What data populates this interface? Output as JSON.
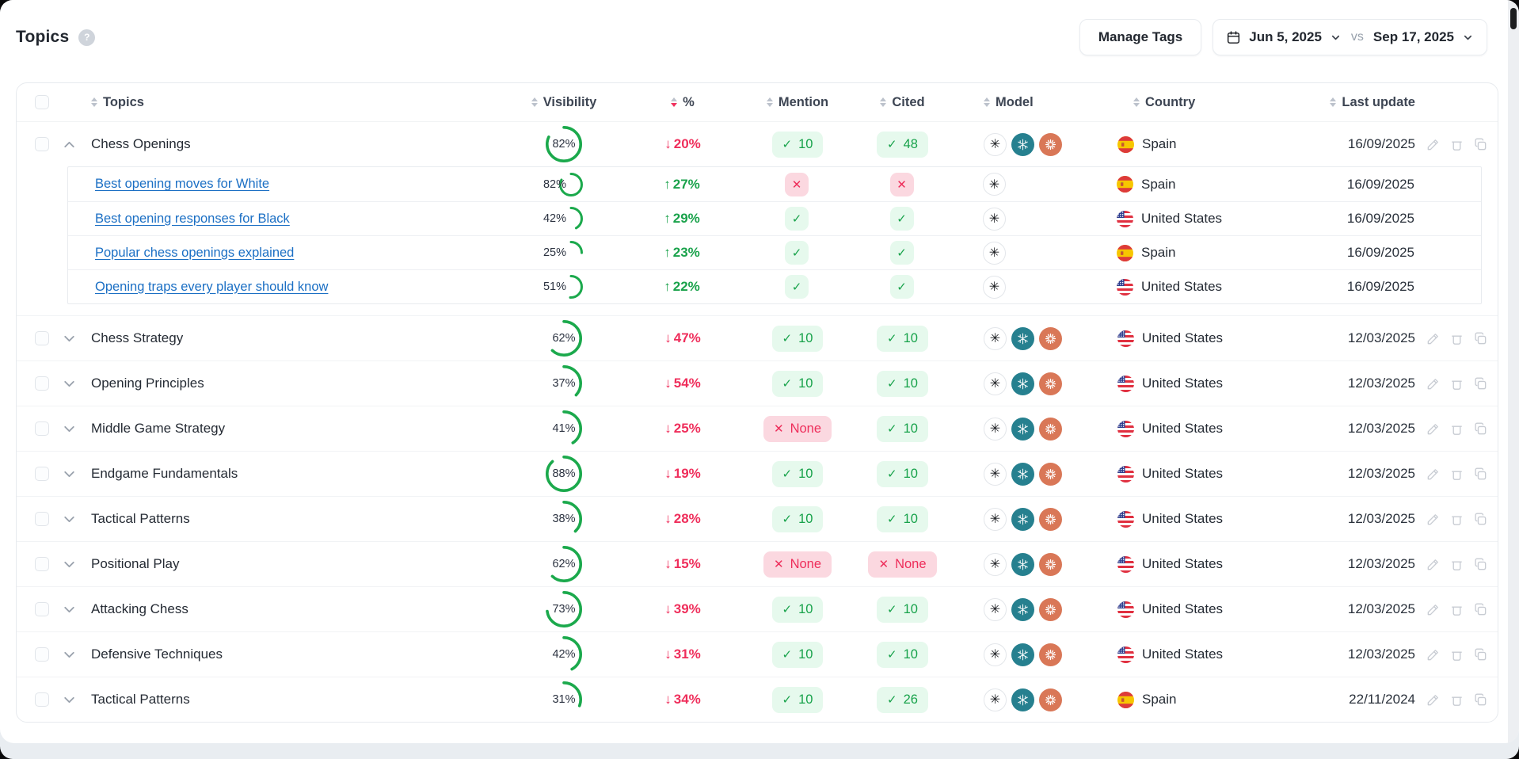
{
  "topbar": {
    "title": "Topics",
    "help": "?",
    "manage_tags": "Manage Tags",
    "date_start": "Jun 5, 2025",
    "vs": "vs",
    "date_end": "Sep 17, 2025"
  },
  "colors": {
    "green": "#1aa24b",
    "green_pill_bg": "#e6f9ed",
    "red": "#ef2e5b",
    "red_pill_bg": "#fbd8e0",
    "link_blue": "#1b6fc4",
    "perplexity_teal": "#26808f",
    "claude_orange": "#d97757",
    "ring_green": "#1ba94c"
  },
  "table": {
    "headers": [
      {
        "id": "topics",
        "label": "Topics",
        "sort": "both"
      },
      {
        "id": "visibility",
        "label": "Visibility",
        "sort": "both"
      },
      {
        "id": "pct",
        "label": "%",
        "sort": "desc"
      },
      {
        "id": "mention",
        "label": "Mention",
        "sort": "both"
      },
      {
        "id": "cited",
        "label": "Cited",
        "sort": "both"
      },
      {
        "id": "model",
        "label": "Model",
        "sort": "both"
      },
      {
        "id": "country",
        "label": "Country",
        "sort": "both"
      },
      {
        "id": "last_update",
        "label": "Last update",
        "sort": "both"
      }
    ],
    "rows": [
      {
        "name": "Chess Openings",
        "visibility": 82,
        "change": {
          "dir": "down",
          "value": "20%"
        },
        "mention": {
          "type": "count",
          "value": "10"
        },
        "cited": {
          "type": "count",
          "value": "48"
        },
        "models": [
          "openai",
          "perplexity",
          "claude"
        ],
        "country": {
          "code": "es",
          "name": "Spain"
        },
        "date": "16/09/2025",
        "expanded": true,
        "children": [
          {
            "name": "Best opening moves for White",
            "visibility": 82,
            "change": {
              "dir": "up",
              "value": "27%"
            },
            "mention": {
              "type": "cross"
            },
            "cited": {
              "type": "cross"
            },
            "models": [
              "openai"
            ],
            "country": {
              "code": "es",
              "name": "Spain"
            },
            "date": "16/09/2025"
          },
          {
            "name": "Best opening responses for Black",
            "visibility": 42,
            "change": {
              "dir": "up",
              "value": "29%"
            },
            "mention": {
              "type": "check"
            },
            "cited": {
              "type": "check"
            },
            "models": [
              "openai"
            ],
            "country": {
              "code": "us",
              "name": "United States"
            },
            "date": "16/09/2025"
          },
          {
            "name": "Popular chess openings explained",
            "visibility": 25,
            "change": {
              "dir": "up",
              "value": "23%"
            },
            "mention": {
              "type": "check"
            },
            "cited": {
              "type": "check"
            },
            "models": [
              "openai"
            ],
            "country": {
              "code": "es",
              "name": "Spain"
            },
            "date": "16/09/2025"
          },
          {
            "name": "Opening traps every player should know",
            "visibility": 51,
            "change": {
              "dir": "up",
              "value": "22%"
            },
            "mention": {
              "type": "check"
            },
            "cited": {
              "type": "check"
            },
            "models": [
              "openai"
            ],
            "country": {
              "code": "us",
              "name": "United States"
            },
            "date": "16/09/2025"
          }
        ]
      },
      {
        "name": "Chess Strategy",
        "visibility": 62,
        "change": {
          "dir": "down",
          "value": "47%"
        },
        "mention": {
          "type": "count",
          "value": "10"
        },
        "cited": {
          "type": "count",
          "value": "10"
        },
        "models": [
          "openai",
          "perplexity",
          "claude"
        ],
        "country": {
          "code": "us",
          "name": "United States"
        },
        "date": "12/03/2025",
        "expanded": false,
        "children": []
      },
      {
        "name": "Opening Principles",
        "visibility": 37,
        "change": {
          "dir": "down",
          "value": "54%"
        },
        "mention": {
          "type": "count",
          "value": "10"
        },
        "cited": {
          "type": "count",
          "value": "10"
        },
        "models": [
          "openai",
          "perplexity",
          "claude"
        ],
        "country": {
          "code": "us",
          "name": "United States"
        },
        "date": "12/03/2025",
        "expanded": false,
        "children": []
      },
      {
        "name": "Middle Game Strategy",
        "visibility": 41,
        "change": {
          "dir": "down",
          "value": "25%"
        },
        "mention": {
          "type": "none",
          "value": "None"
        },
        "cited": {
          "type": "count",
          "value": "10"
        },
        "models": [
          "openai",
          "perplexity",
          "claude"
        ],
        "country": {
          "code": "us",
          "name": "United States"
        },
        "date": "12/03/2025",
        "expanded": false,
        "children": []
      },
      {
        "name": "Endgame Fundamentals",
        "visibility": 88,
        "change": {
          "dir": "down",
          "value": "19%"
        },
        "mention": {
          "type": "count",
          "value": "10"
        },
        "cited": {
          "type": "count",
          "value": "10"
        },
        "models": [
          "openai",
          "perplexity",
          "claude"
        ],
        "country": {
          "code": "us",
          "name": "United States"
        },
        "date": "12/03/2025",
        "expanded": false,
        "children": []
      },
      {
        "name": "Tactical Patterns",
        "visibility": 38,
        "change": {
          "dir": "down",
          "value": "28%"
        },
        "mention": {
          "type": "count",
          "value": "10"
        },
        "cited": {
          "type": "count",
          "value": "10"
        },
        "models": [
          "openai",
          "perplexity",
          "claude"
        ],
        "country": {
          "code": "us",
          "name": "United States"
        },
        "date": "12/03/2025",
        "expanded": false,
        "children": []
      },
      {
        "name": "Positional Play",
        "visibility": 62,
        "change": {
          "dir": "down",
          "value": "15%"
        },
        "mention": {
          "type": "none",
          "value": "None"
        },
        "cited": {
          "type": "none",
          "value": "None"
        },
        "models": [
          "openai",
          "perplexity",
          "claude"
        ],
        "country": {
          "code": "us",
          "name": "United States"
        },
        "date": "12/03/2025",
        "expanded": false,
        "children": []
      },
      {
        "name": "Attacking Chess",
        "visibility": 73,
        "change": {
          "dir": "down",
          "value": "39%"
        },
        "mention": {
          "type": "count",
          "value": "10"
        },
        "cited": {
          "type": "count",
          "value": "10"
        },
        "models": [
          "openai",
          "perplexity",
          "claude"
        ],
        "country": {
          "code": "us",
          "name": "United States"
        },
        "date": "12/03/2025",
        "expanded": false,
        "children": []
      },
      {
        "name": "Defensive Techniques",
        "visibility": 42,
        "change": {
          "dir": "down",
          "value": "31%"
        },
        "mention": {
          "type": "count",
          "value": "10"
        },
        "cited": {
          "type": "count",
          "value": "10"
        },
        "models": [
          "openai",
          "perplexity",
          "claude"
        ],
        "country": {
          "code": "us",
          "name": "United States"
        },
        "date": "12/03/2025",
        "expanded": false,
        "children": []
      },
      {
        "name": "Tactical Patterns",
        "visibility": 31,
        "change": {
          "dir": "down",
          "value": "34%"
        },
        "mention": {
          "type": "count",
          "value": "10"
        },
        "cited": {
          "type": "count",
          "value": "26"
        },
        "models": [
          "openai",
          "perplexity",
          "claude"
        ],
        "country": {
          "code": "es",
          "name": "Spain"
        },
        "date": "22/11/2024",
        "expanded": false,
        "children": []
      }
    ]
  }
}
